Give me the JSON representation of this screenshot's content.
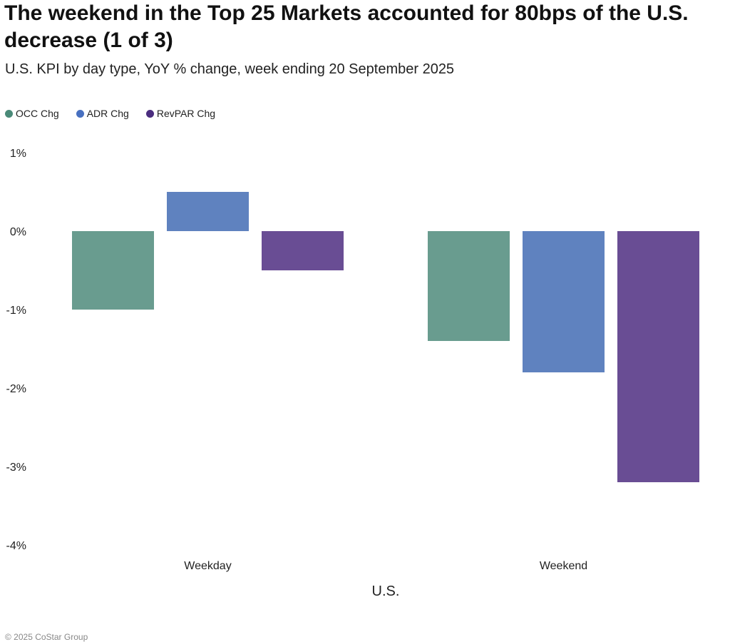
{
  "chart_data": {
    "type": "bar",
    "title": "The weekend in the Top 25 Markets accounted for 80bps of the U.S. decrease (1 of 3)",
    "subtitle": "U.S. KPI by day type, YoY % change, week ending 20 September 2025",
    "xlabel": "U.S.",
    "ylabel": "",
    "categories": [
      "Weekday",
      "Weekend"
    ],
    "series": [
      {
        "name": "OCC Chg",
        "color": "#699c8f",
        "legend_color": "#4a8a78",
        "values": [
          -1.0,
          -1.4
        ]
      },
      {
        "name": "ADR Chg",
        "color": "#5f82bf",
        "legend_color": "#4870c0",
        "values": [
          0.5,
          -1.8
        ]
      },
      {
        "name": "RevPAR Chg",
        "color": "#694d94",
        "legend_color": "#4b2d7f",
        "values": [
          -0.5,
          -3.2
        ]
      }
    ],
    "ylim": [
      -4,
      1
    ],
    "yticks": [
      1,
      0,
      -1,
      -2,
      -3,
      -4
    ],
    "ytick_labels": [
      "1%",
      "0%",
      "-1%",
      "-2%",
      "-3%",
      "-4%"
    ],
    "grid": false,
    "legend_position": "top-left"
  },
  "footer": "© 2025 CoStar Group"
}
